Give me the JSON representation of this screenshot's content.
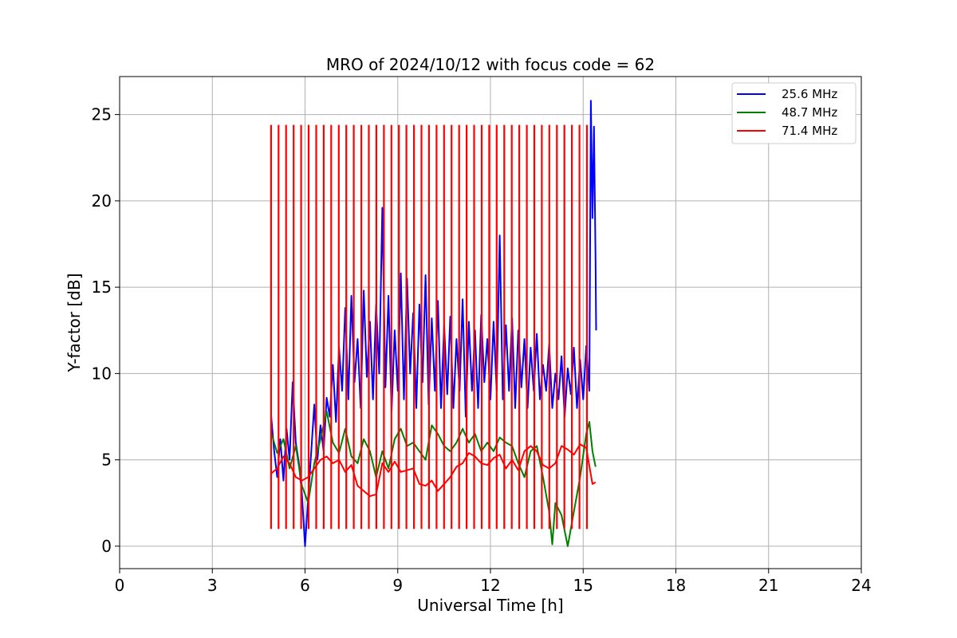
{
  "chart_data": {
    "type": "line",
    "title": "MRO of 2024/10/12 with focus code = 62",
    "xlabel": "Universal Time [h]",
    "ylabel": "Y-factor [dB]",
    "xlim": [
      0,
      24
    ],
    "ylim": [
      -1.3,
      27.2
    ],
    "xticks": [
      0,
      3,
      6,
      9,
      12,
      15,
      18,
      21,
      24
    ],
    "yticks": [
      0,
      5,
      10,
      15,
      20,
      25
    ],
    "grid": true,
    "legend_position": "top-right",
    "series": [
      {
        "name": "25.6 MHz",
        "color": "#0000ff",
        "points": [
          [
            4.9,
            7.6
          ],
          [
            5.0,
            5.5
          ],
          [
            5.1,
            4.0
          ],
          [
            5.2,
            6.2
          ],
          [
            5.3,
            3.8
          ],
          [
            5.4,
            6.8
          ],
          [
            5.5,
            5.0
          ],
          [
            5.6,
            9.5
          ],
          [
            5.7,
            6.0
          ],
          [
            5.8,
            4.8
          ],
          [
            5.9,
            3.0
          ],
          [
            6.0,
            0.0
          ],
          [
            6.1,
            2.8
          ],
          [
            6.2,
            5.5
          ],
          [
            6.3,
            8.2
          ],
          [
            6.4,
            5.0
          ],
          [
            6.5,
            7.0
          ],
          [
            6.6,
            5.5
          ],
          [
            6.7,
            8.6
          ],
          [
            6.8,
            7.5
          ],
          [
            6.9,
            10.5
          ],
          [
            7.0,
            7.2
          ],
          [
            7.1,
            11.5
          ],
          [
            7.2,
            9.0
          ],
          [
            7.3,
            13.8
          ],
          [
            7.4,
            8.5
          ],
          [
            7.5,
            14.5
          ],
          [
            7.6,
            9.5
          ],
          [
            7.7,
            12.0
          ],
          [
            7.8,
            8.0
          ],
          [
            7.9,
            14.8
          ],
          [
            8.0,
            9.8
          ],
          [
            8.1,
            13.0
          ],
          [
            8.2,
            8.5
          ],
          [
            8.3,
            14.0
          ],
          [
            8.4,
            10.0
          ],
          [
            8.5,
            19.6
          ],
          [
            8.6,
            9.2
          ],
          [
            8.7,
            14.5
          ],
          [
            8.8,
            7.8
          ],
          [
            8.9,
            12.5
          ],
          [
            9.0,
            9.0
          ],
          [
            9.1,
            15.8
          ],
          [
            9.2,
            8.5
          ],
          [
            9.3,
            15.5
          ],
          [
            9.4,
            10.0
          ],
          [
            9.5,
            13.5
          ],
          [
            9.6,
            8.0
          ],
          [
            9.7,
            14.0
          ],
          [
            9.8,
            9.5
          ],
          [
            9.9,
            15.7
          ],
          [
            10.0,
            8.2
          ],
          [
            10.1,
            13.2
          ],
          [
            10.2,
            9.0
          ],
          [
            10.3,
            14.2
          ],
          [
            10.4,
            8.0
          ],
          [
            10.5,
            12.8
          ],
          [
            10.6,
            8.8
          ],
          [
            10.7,
            13.3
          ],
          [
            10.8,
            8.0
          ],
          [
            10.9,
            12.0
          ],
          [
            11.0,
            9.0
          ],
          [
            11.1,
            14.3
          ],
          [
            11.2,
            7.5
          ],
          [
            11.3,
            13.0
          ],
          [
            11.4,
            9.0
          ],
          [
            11.5,
            12.5
          ],
          [
            11.6,
            8.0
          ],
          [
            11.7,
            13.4
          ],
          [
            11.8,
            9.5
          ],
          [
            11.9,
            12.0
          ],
          [
            12.0,
            8.5
          ],
          [
            12.1,
            13.0
          ],
          [
            12.2,
            9.0
          ],
          [
            12.3,
            18.0
          ],
          [
            12.4,
            8.5
          ],
          [
            12.5,
            12.8
          ],
          [
            12.6,
            9.0
          ],
          [
            12.7,
            13.2
          ],
          [
            12.8,
            8.0
          ],
          [
            12.9,
            12.5
          ],
          [
            13.0,
            9.2
          ],
          [
            13.1,
            12.0
          ],
          [
            13.2,
            8.0
          ],
          [
            13.3,
            11.5
          ],
          [
            13.4,
            9.0
          ],
          [
            13.5,
            12.3
          ],
          [
            13.6,
            8.5
          ],
          [
            13.7,
            10.5
          ],
          [
            13.8,
            9.0
          ],
          [
            13.9,
            11.7
          ],
          [
            14.0,
            8.0
          ],
          [
            14.1,
            10.0
          ],
          [
            14.2,
            8.5
          ],
          [
            14.3,
            11.0
          ],
          [
            14.4,
            7.5
          ],
          [
            14.5,
            10.3
          ],
          [
            14.6,
            8.8
          ],
          [
            14.7,
            11.5
          ],
          [
            14.8,
            8.0
          ],
          [
            14.9,
            10.8
          ],
          [
            15.0,
            8.5
          ],
          [
            15.1,
            11.6
          ],
          [
            15.2,
            9.0
          ],
          [
            15.25,
            25.8
          ],
          [
            15.3,
            19.0
          ],
          [
            15.35,
            24.3
          ],
          [
            15.4,
            16.5
          ],
          [
            15.42,
            12.5
          ]
        ]
      },
      {
        "name": "48.7 MHz",
        "color": "#008000",
        "points": [
          [
            4.9,
            6.6
          ],
          [
            5.1,
            5.4
          ],
          [
            5.3,
            6.2
          ],
          [
            5.5,
            4.5
          ],
          [
            5.7,
            5.8
          ],
          [
            5.9,
            3.5
          ],
          [
            6.1,
            2.5
          ],
          [
            6.3,
            4.8
          ],
          [
            6.5,
            6.2
          ],
          [
            6.7,
            7.8
          ],
          [
            6.9,
            6.0
          ],
          [
            7.1,
            5.4
          ],
          [
            7.3,
            6.8
          ],
          [
            7.5,
            5.2
          ],
          [
            7.7,
            4.8
          ],
          [
            7.9,
            6.2
          ],
          [
            8.1,
            5.5
          ],
          [
            8.3,
            4.0
          ],
          [
            8.5,
            5.5
          ],
          [
            8.7,
            4.5
          ],
          [
            8.9,
            6.2
          ],
          [
            9.1,
            6.8
          ],
          [
            9.3,
            5.8
          ],
          [
            9.5,
            6.0
          ],
          [
            9.7,
            5.5
          ],
          [
            9.9,
            5.0
          ],
          [
            10.1,
            7.0
          ],
          [
            10.3,
            6.5
          ],
          [
            10.5,
            5.8
          ],
          [
            10.7,
            5.5
          ],
          [
            10.9,
            6.0
          ],
          [
            11.1,
            6.8
          ],
          [
            11.3,
            6.0
          ],
          [
            11.5,
            6.5
          ],
          [
            11.7,
            5.5
          ],
          [
            11.9,
            6.0
          ],
          [
            12.1,
            5.5
          ],
          [
            12.3,
            6.3
          ],
          [
            12.5,
            6.0
          ],
          [
            12.7,
            5.8
          ],
          [
            12.9,
            4.8
          ],
          [
            13.1,
            4.0
          ],
          [
            13.3,
            5.5
          ],
          [
            13.5,
            5.8
          ],
          [
            13.7,
            4.0
          ],
          [
            13.9,
            2.0
          ],
          [
            14.0,
            0.1
          ],
          [
            14.1,
            2.5
          ],
          [
            14.3,
            1.8
          ],
          [
            14.5,
            0.0
          ],
          [
            14.7,
            2.0
          ],
          [
            14.9,
            4.0
          ],
          [
            15.1,
            6.5
          ],
          [
            15.2,
            7.2
          ],
          [
            15.3,
            5.5
          ],
          [
            15.4,
            4.6
          ]
        ]
      },
      {
        "name": "71.4 MHz",
        "color": "#ff0000",
        "points": [
          [
            4.9,
            4.2
          ],
          [
            5.1,
            4.5
          ],
          [
            5.3,
            5.2
          ],
          [
            5.5,
            4.8
          ],
          [
            5.7,
            4.0
          ],
          [
            5.9,
            3.8
          ],
          [
            6.1,
            4.0
          ],
          [
            6.3,
            4.5
          ],
          [
            6.5,
            5.0
          ],
          [
            6.7,
            5.2
          ],
          [
            6.9,
            4.8
          ],
          [
            7.1,
            5.0
          ],
          [
            7.3,
            4.3
          ],
          [
            7.5,
            4.7
          ],
          [
            7.7,
            3.5
          ],
          [
            7.9,
            3.2
          ],
          [
            8.1,
            2.9
          ],
          [
            8.3,
            3.0
          ],
          [
            8.5,
            4.8
          ],
          [
            8.7,
            4.3
          ],
          [
            8.9,
            4.9
          ],
          [
            9.1,
            4.3
          ],
          [
            9.3,
            4.4
          ],
          [
            9.5,
            4.5
          ],
          [
            9.7,
            3.6
          ],
          [
            9.9,
            3.5
          ],
          [
            10.1,
            3.8
          ],
          [
            10.3,
            3.2
          ],
          [
            10.5,
            3.6
          ],
          [
            10.7,
            4.0
          ],
          [
            10.9,
            4.6
          ],
          [
            11.1,
            4.8
          ],
          [
            11.3,
            5.4
          ],
          [
            11.5,
            5.2
          ],
          [
            11.7,
            4.8
          ],
          [
            11.9,
            4.7
          ],
          [
            12.1,
            5.1
          ],
          [
            12.3,
            5.3
          ],
          [
            12.5,
            4.5
          ],
          [
            12.7,
            5.0
          ],
          [
            12.9,
            4.4
          ],
          [
            13.1,
            5.5
          ],
          [
            13.3,
            5.8
          ],
          [
            13.5,
            5.5
          ],
          [
            13.7,
            4.7
          ],
          [
            13.9,
            4.5
          ],
          [
            14.1,
            4.8
          ],
          [
            14.3,
            5.8
          ],
          [
            14.5,
            5.6
          ],
          [
            14.7,
            5.3
          ],
          [
            14.9,
            5.9
          ],
          [
            15.1,
            5.7
          ],
          [
            15.3,
            3.6
          ],
          [
            15.4,
            3.7
          ]
        ]
      },
      {
        "name": "",
        "color": "#ff0000",
        "spikes_start": 4.9,
        "spikes_step": 0.2434,
        "spikes_count": 43,
        "spikes_peak": 24.4,
        "spikes_trough": 1.0
      }
    ]
  }
}
